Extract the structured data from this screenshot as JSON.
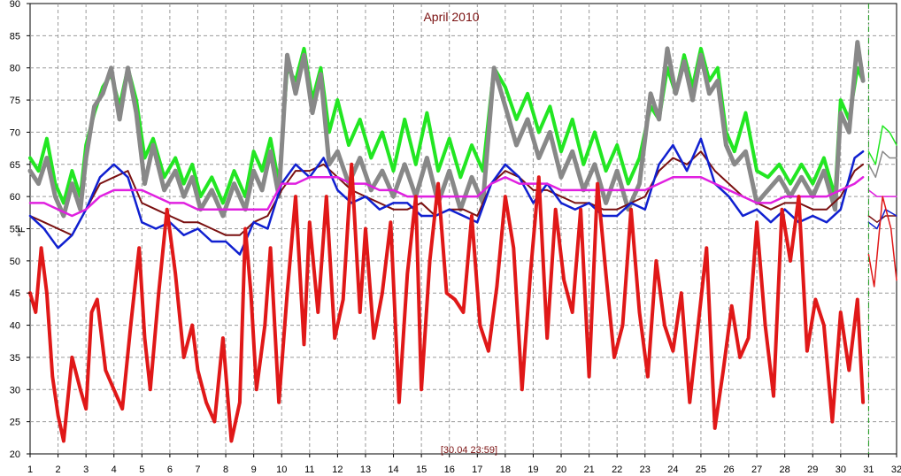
{
  "chart_data": {
    "type": "line",
    "title": "April 2010",
    "ylabel": "°F",
    "timestamp": "[30.04 23:59]",
    "xlim": [
      1,
      32
    ],
    "ylim": [
      20,
      90
    ],
    "x_ticks": [
      "1",
      "2",
      "3",
      "4",
      "5",
      "6",
      "7",
      "8",
      "9",
      "10",
      "11",
      "12",
      "13",
      "14",
      "15",
      "16",
      "17",
      "18",
      "19",
      "20",
      "21",
      "22",
      "23",
      "24",
      "25",
      "26",
      "27",
      "28",
      "29",
      "30",
      "31",
      "32"
    ],
    "y_ticks": [
      "20",
      "25",
      "30",
      "35",
      "40",
      "45",
      "50",
      "55",
      "60",
      "65",
      "70",
      "75",
      "80",
      "85",
      "90"
    ],
    "grid": true,
    "cursor_day": 31,
    "series": [
      {
        "color": "#22e622",
        "width": 4,
        "x": [
          1,
          1.3,
          1.6,
          1.9,
          2.2,
          2.5,
          2.8,
          3,
          3.3,
          3.6,
          3.9,
          4.2,
          4.5,
          4.8,
          5.1,
          5.4,
          5.8,
          6.2,
          6.5,
          6.8,
          7.1,
          7.5,
          7.9,
          8.3,
          8.7,
          9,
          9.3,
          9.6,
          9.9,
          10.2,
          10.5,
          10.8,
          11.1,
          11.4,
          11.7,
          12,
          12.4,
          12.8,
          13.2,
          13.6,
          14,
          14.4,
          14.8,
          15.2,
          15.6,
          16,
          16.4,
          16.8,
          17.2,
          17.6,
          18,
          18.4,
          18.8,
          19.2,
          19.6,
          20,
          20.4,
          20.8,
          21.2,
          21.6,
          22,
          22.4,
          22.8,
          23.2,
          23.5,
          23.8,
          24.1,
          24.4,
          24.7,
          25,
          25.3,
          25.6,
          25.9,
          26.2,
          26.6,
          27,
          27.4,
          27.8,
          28.2,
          28.6,
          29,
          29.4,
          29.8,
          30,
          30.3,
          30.6,
          30.8
        ],
        "y": [
          66,
          64,
          69,
          62,
          59,
          64,
          60,
          68,
          73,
          77,
          79,
          74,
          80,
          75,
          66,
          69,
          63,
          66,
          62,
          65,
          60,
          63,
          59,
          64,
          60,
          67,
          64,
          69,
          62,
          80,
          78,
          83,
          75,
          80,
          70,
          75,
          68,
          72,
          66,
          70,
          64,
          72,
          65,
          73,
          64,
          69,
          63,
          68,
          64,
          80,
          77,
          72,
          76,
          70,
          74,
          67,
          72,
          65,
          70,
          64,
          68,
          62,
          66,
          74,
          72,
          80,
          76,
          82,
          77,
          83,
          78,
          80,
          70,
          67,
          73,
          64,
          63,
          65,
          62,
          65,
          62,
          66,
          60,
          75,
          72,
          80,
          78
        ]
      },
      {
        "color": "#888888",
        "width": 5,
        "x": [
          1,
          1.3,
          1.6,
          1.9,
          2.2,
          2.5,
          2.8,
          3,
          3.3,
          3.6,
          3.9,
          4.2,
          4.5,
          4.8,
          5.1,
          5.4,
          5.8,
          6.2,
          6.5,
          6.8,
          7.1,
          7.5,
          7.9,
          8.3,
          8.7,
          9,
          9.3,
          9.6,
          9.9,
          10.2,
          10.5,
          10.8,
          11.1,
          11.4,
          11.7,
          12,
          12.4,
          12.8,
          13.2,
          13.6,
          14,
          14.4,
          14.8,
          15.2,
          15.6,
          16,
          16.4,
          16.8,
          17.2,
          17.6,
          18,
          18.4,
          18.8,
          19.2,
          19.6,
          20,
          20.4,
          20.8,
          21.2,
          21.6,
          22,
          22.4,
          22.8,
          23.2,
          23.5,
          23.8,
          24.1,
          24.4,
          24.7,
          25,
          25.3,
          25.6,
          25.9,
          26.2,
          26.6,
          27,
          27.4,
          27.8,
          28.2,
          28.6,
          29,
          29.4,
          29.8,
          30,
          30.3,
          30.6,
          30.8
        ],
        "y": [
          64,
          62,
          66,
          60,
          57,
          62,
          58,
          66,
          74,
          76,
          80,
          72,
          80,
          73,
          62,
          68,
          61,
          64,
          60,
          63,
          58,
          61,
          57,
          62,
          58,
          64,
          61,
          67,
          60,
          82,
          76,
          82,
          73,
          79,
          65,
          67,
          62,
          66,
          61,
          64,
          60,
          65,
          60,
          66,
          59,
          64,
          58,
          63,
          59,
          80,
          74,
          68,
          72,
          66,
          70,
          63,
          67,
          61,
          65,
          59,
          64,
          58,
          62,
          76,
          72,
          83,
          76,
          81,
          75,
          82,
          76,
          78,
          68,
          65,
          67,
          59,
          61,
          63,
          60,
          63,
          60,
          64,
          58,
          73,
          70,
          84,
          78
        ]
      },
      {
        "color": "#7a1010",
        "width": 2,
        "x": [
          1,
          1.5,
          2,
          2.5,
          3,
          3.5,
          4,
          4.5,
          5,
          5.5,
          6,
          6.5,
          7,
          7.5,
          8,
          8.5,
          9,
          9.5,
          10,
          10.5,
          11,
          11.5,
          12,
          12.5,
          13,
          13.5,
          14,
          14.5,
          15,
          15.5,
          16,
          16.5,
          17,
          17.5,
          18,
          18.5,
          19,
          19.5,
          20,
          20.5,
          21,
          21.5,
          22,
          22.5,
          23,
          23.5,
          24,
          24.5,
          25,
          25.5,
          26,
          26.5,
          27,
          27.5,
          28,
          28.5,
          29,
          29.5,
          30,
          30.5,
          30.8
        ],
        "y": [
          57,
          56,
          55,
          54,
          58,
          62,
          63,
          64,
          59,
          58,
          57,
          56,
          56,
          55,
          54,
          54,
          56,
          57,
          61,
          64,
          64,
          65,
          63,
          61,
          60,
          59,
          58,
          58,
          59,
          57,
          58,
          58,
          57,
          62,
          64,
          63,
          61,
          61,
          60,
          59,
          59,
          58,
          58,
          59,
          60,
          64,
          66,
          65,
          67,
          64,
          62,
          60,
          59,
          58,
          59,
          59,
          58,
          58,
          60,
          64,
          65
        ]
      },
      {
        "color": "#1020d0",
        "width": 2.5,
        "x": [
          1,
          1.5,
          2,
          2.5,
          3,
          3.5,
          4,
          4.5,
          5,
          5.5,
          6,
          6.5,
          7,
          7.5,
          8,
          8.5,
          9,
          9.5,
          10,
          10.5,
          11,
          11.5,
          12,
          12.5,
          13,
          13.5,
          14,
          14.5,
          15,
          15.5,
          16,
          16.5,
          17,
          17.5,
          18,
          18.5,
          19,
          19.5,
          20,
          20.5,
          21,
          21.5,
          22,
          22.5,
          23,
          23.5,
          24,
          24.5,
          25,
          25.5,
          26,
          26.5,
          27,
          27.5,
          28,
          28.5,
          29,
          29.5,
          30,
          30.5,
          30.8
        ],
        "y": [
          57,
          55,
          52,
          54,
          58,
          63,
          65,
          63,
          56,
          55,
          56,
          54,
          55,
          53,
          53,
          51,
          56,
          55,
          62,
          65,
          63,
          66,
          61,
          59,
          60,
          58,
          59,
          59,
          57,
          57,
          58,
          57,
          56,
          62,
          65,
          63,
          59,
          62,
          59,
          58,
          59,
          57,
          57,
          59,
          58,
          65,
          68,
          64,
          69,
          62,
          60,
          57,
          58,
          56,
          58,
          56,
          57,
          56,
          58,
          66,
          67
        ]
      },
      {
        "color": "#e020e0",
        "width": 2.5,
        "x": [
          1,
          1.5,
          2,
          2.5,
          3,
          3.5,
          4,
          4.5,
          5,
          5.5,
          6,
          6.5,
          7,
          7.5,
          8,
          8.5,
          9,
          9.5,
          10,
          10.5,
          11,
          11.5,
          12,
          12.5,
          13,
          13.5,
          14,
          14.5,
          15,
          15.5,
          16,
          16.5,
          17,
          17.5,
          18,
          18.5,
          19,
          19.5,
          20,
          20.5,
          21,
          21.5,
          22,
          22.5,
          23,
          23.5,
          24,
          24.5,
          25,
          25.5,
          26,
          26.5,
          27,
          27.5,
          28,
          28.5,
          29,
          29.5,
          30,
          30.5,
          30.8
        ],
        "y": [
          59,
          59,
          58,
          57,
          58,
          60,
          61,
          61,
          61,
          60,
          59,
          59,
          58,
          58,
          58,
          58,
          58,
          58,
          62,
          62,
          63,
          63,
          63,
          62,
          62,
          61,
          61,
          60,
          60,
          60,
          60,
          60,
          60,
          62,
          63,
          62,
          62,
          62,
          61,
          61,
          61,
          61,
          61,
          61,
          61,
          62,
          63,
          63,
          63,
          62,
          61,
          60,
          59,
          59,
          60,
          60,
          60,
          60,
          61,
          62,
          63
        ]
      },
      {
        "color": "#e01818",
        "width": 4,
        "x": [
          1,
          1.2,
          1.4,
          1.6,
          1.8,
          2,
          2.2,
          2.5,
          2.8,
          3,
          3.2,
          3.4,
          3.7,
          4,
          4.3,
          4.6,
          4.9,
          5.1,
          5.3,
          5.6,
          5.9,
          6.2,
          6.5,
          6.8,
          7,
          7.3,
          7.6,
          7.9,
          8.2,
          8.5,
          8.7,
          8.9,
          9.1,
          9.4,
          9.6,
          9.9,
          10.2,
          10.5,
          10.8,
          11,
          11.3,
          11.6,
          11.9,
          12.2,
          12.5,
          12.8,
          13,
          13.3,
          13.6,
          13.9,
          14.2,
          14.5,
          14.8,
          15,
          15.3,
          15.6,
          15.9,
          16.2,
          16.5,
          16.8,
          17.1,
          17.4,
          17.7,
          18,
          18.3,
          18.6,
          18.9,
          19.2,
          19.5,
          19.8,
          20.1,
          20.4,
          20.7,
          21,
          21.3,
          21.6,
          21.9,
          22.2,
          22.5,
          22.8,
          23.1,
          23.4,
          23.7,
          24,
          24.3,
          24.6,
          24.9,
          25.2,
          25.5,
          25.8,
          26.1,
          26.4,
          26.7,
          27,
          27.3,
          27.6,
          27.9,
          28.2,
          28.5,
          28.8,
          29.1,
          29.4,
          29.7,
          30,
          30.3,
          30.6,
          30.8
        ],
        "y": [
          45,
          42,
          52,
          45,
          32,
          26,
          22,
          35,
          30,
          27,
          42,
          44,
          33,
          30,
          27,
          40,
          52,
          38,
          30,
          45,
          58,
          48,
          35,
          40,
          33,
          28,
          25,
          38,
          22,
          28,
          55,
          45,
          30,
          40,
          52,
          28,
          45,
          60,
          37,
          56,
          42,
          60,
          38,
          44,
          65,
          42,
          55,
          38,
          45,
          56,
          28,
          48,
          60,
          30,
          50,
          62,
          45,
          44,
          42,
          57,
          40,
          36,
          46,
          60,
          52,
          30,
          48,
          63,
          38,
          58,
          47,
          42,
          58,
          32,
          62,
          48,
          35,
          40,
          58,
          42,
          32,
          50,
          40,
          36,
          45,
          28,
          40,
          52,
          24,
          33,
          43,
          35,
          38,
          56,
          40,
          29,
          58,
          50,
          60,
          36,
          44,
          40,
          25,
          42,
          33,
          44,
          28
        ]
      }
    ],
    "extra_series": [
      {
        "color": "#22e622",
        "width": 1.5,
        "x": [
          31,
          31.25,
          31.5,
          31.75,
          32
        ],
        "y": [
          67,
          65,
          71,
          70,
          68
        ]
      },
      {
        "color": "#888888",
        "width": 1.5,
        "x": [
          31,
          31.25,
          31.5,
          31.75,
          32
        ],
        "y": [
          65,
          63,
          67,
          66,
          66
        ]
      },
      {
        "color": "#7a1010",
        "width": 1.5,
        "x": [
          31,
          31.3,
          31.6,
          32
        ],
        "y": [
          57,
          56,
          57,
          57
        ]
      },
      {
        "color": "#1020d0",
        "width": 1.5,
        "x": [
          31,
          31.3,
          31.6,
          32
        ],
        "y": [
          56,
          55,
          58,
          57
        ]
      },
      {
        "color": "#e020e0",
        "width": 1.5,
        "x": [
          31,
          31.3,
          31.6,
          32
        ],
        "y": [
          61,
          60,
          60,
          60
        ]
      },
      {
        "color": "#e01818",
        "width": 1.5,
        "x": [
          31,
          31.2,
          31.5,
          31.8,
          32
        ],
        "y": [
          51,
          46,
          60,
          55,
          47
        ]
      }
    ]
  }
}
